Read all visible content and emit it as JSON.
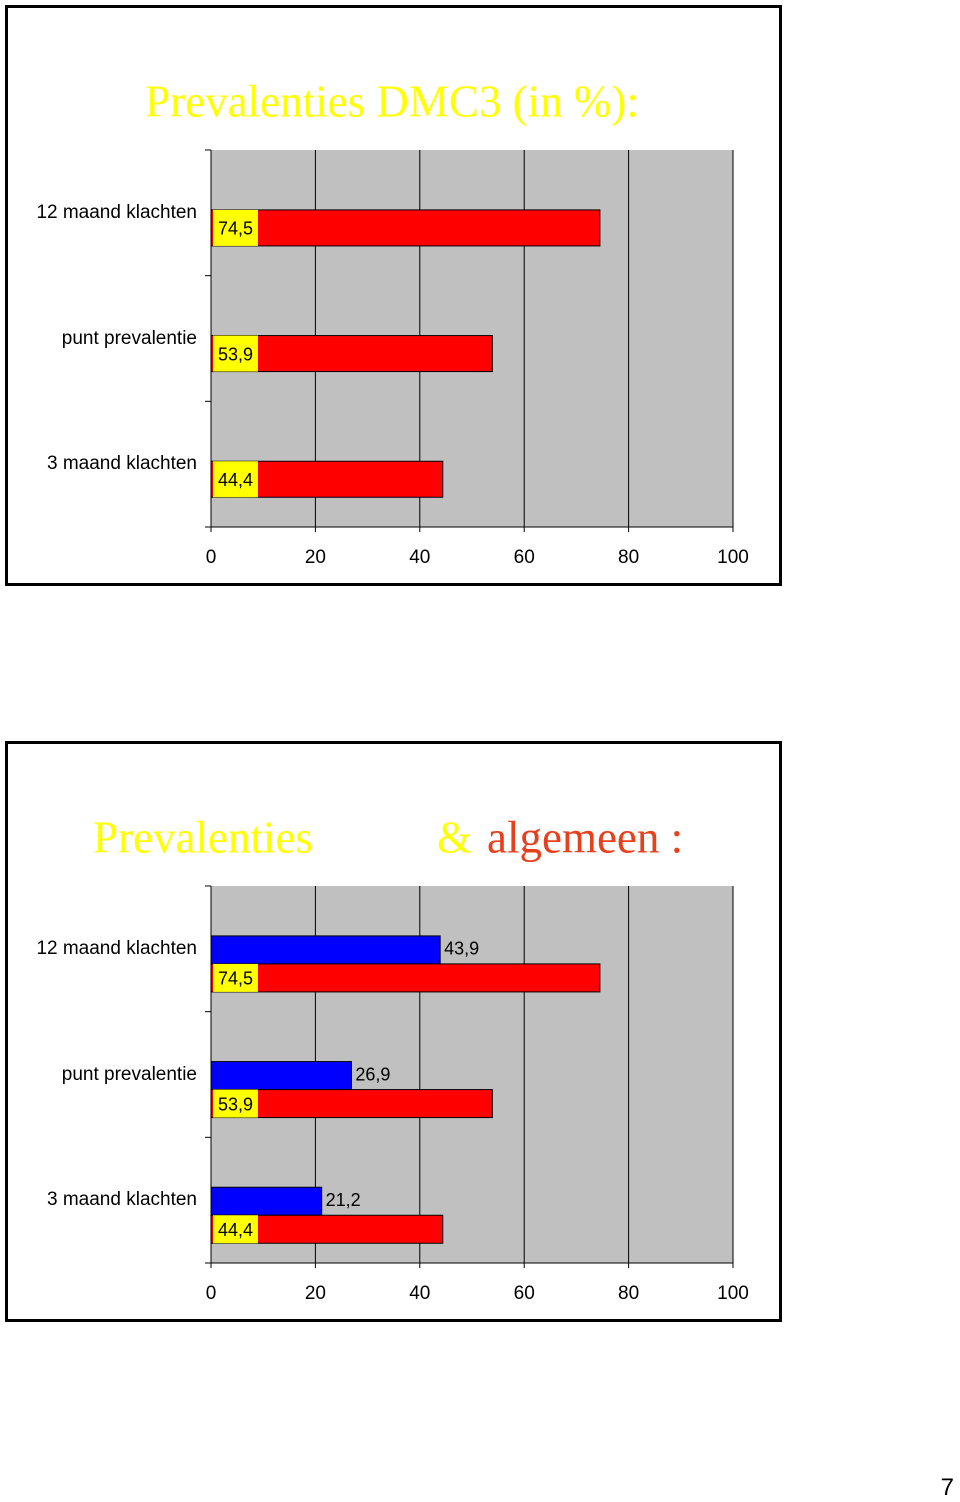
{
  "chart_data": [
    {
      "type": "hbar",
      "title": [
        {
          "text": "Prevalenties DMC3 (in %):",
          "color": "#ffff00"
        }
      ],
      "categories": [
        "12 maand klachten",
        "punt prevalentie",
        "3 maand klachten"
      ],
      "series": [
        {
          "color": "#ff0000",
          "values": [
            74.5,
            53.9,
            44.4
          ],
          "value_labels": [
            "74,5",
            "53,9",
            "44,4"
          ],
          "label_position": "start-box",
          "label_background": "#ffff00"
        }
      ],
      "xlim": [
        0,
        100
      ],
      "xticks": [
        0,
        20,
        40,
        60,
        80,
        100
      ],
      "grid": true,
      "plot_background": "#c0c0c0"
    },
    {
      "type": "hbar",
      "title": [
        {
          "text": "Prevalenties",
          "color": "#ffff00"
        },
        {
          "text": "&",
          "color": "#ffff00"
        },
        {
          "text": "algemeen :",
          "color": "#e8401c"
        }
      ],
      "categories": [
        "12 maand klachten",
        "punt prevalentie",
        "3 maand klachten"
      ],
      "series": [
        {
          "color": "#0000ff",
          "values": [
            43.9,
            26.9,
            21.2
          ],
          "value_labels": [
            "43,9",
            "26,9",
            "21,2"
          ],
          "label_position": "end"
        },
        {
          "color": "#ff0000",
          "values": [
            74.5,
            53.9,
            44.4
          ],
          "value_labels": [
            "74,5",
            "53,9",
            "44,4"
          ],
          "label_position": "start-box",
          "label_background": "#ffff00"
        }
      ],
      "xlim": [
        0,
        100
      ],
      "xticks": [
        0,
        20,
        40,
        60,
        80,
        100
      ],
      "grid": true,
      "plot_background": "#c0c0c0"
    }
  ],
  "page_number": "7"
}
